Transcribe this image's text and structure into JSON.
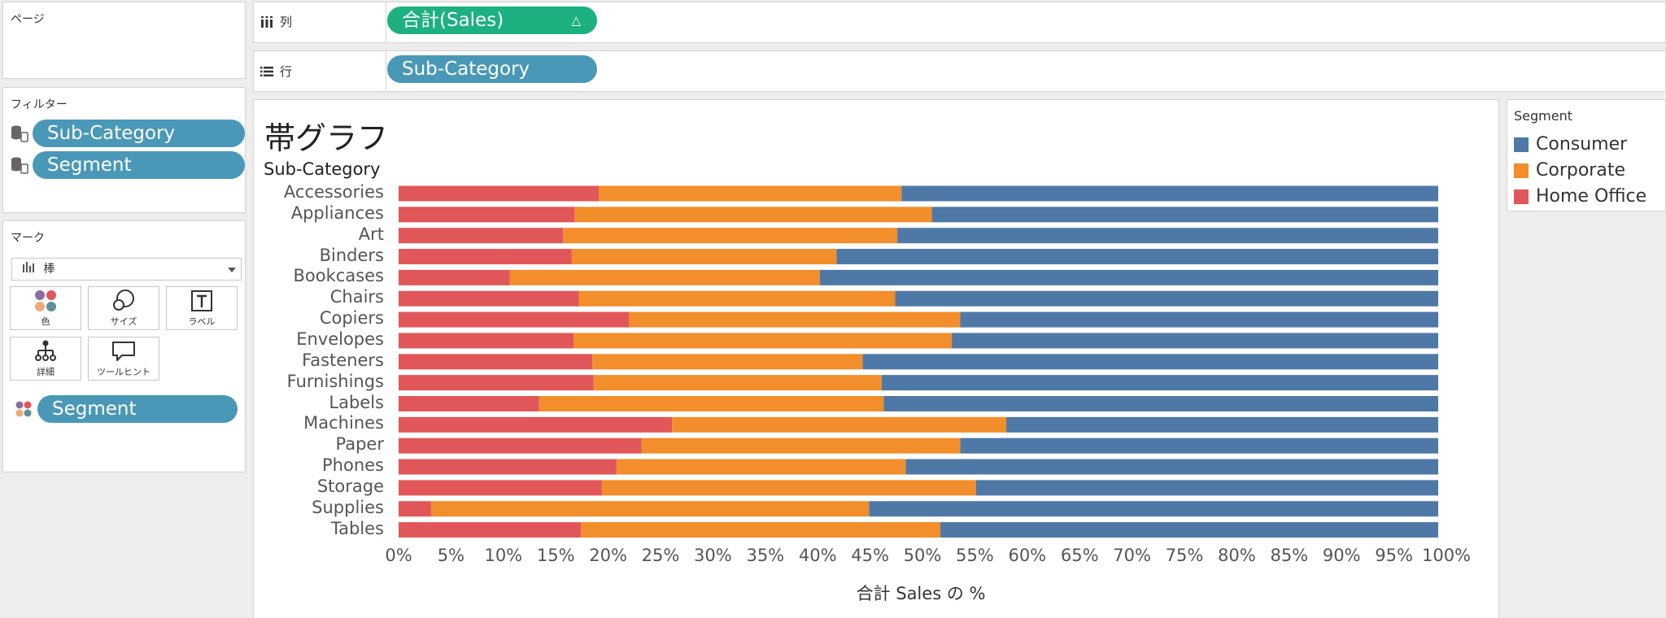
{
  "pages_panel": {
    "title": "ページ"
  },
  "filters_panel": {
    "title": "フィルター",
    "items": [
      {
        "label": "Sub-Category"
      },
      {
        "label": "Segment"
      }
    ]
  },
  "marks_panel": {
    "title": "マーク",
    "mark_type": "棒",
    "buttons": [
      {
        "label": "色"
      },
      {
        "label": "サイズ"
      },
      {
        "label": "ラベル"
      },
      {
        "label": "詳細"
      },
      {
        "label": "ツールヒント"
      }
    ],
    "color_pill": "Segment"
  },
  "shelves": {
    "columns_label": "列",
    "columns_pill": "合計(Sales)",
    "columns_pill_delta": "△",
    "rows_label": "行",
    "rows_pill": "Sub-Category"
  },
  "legend": {
    "title": "Segment",
    "items": [
      {
        "label": "Consumer",
        "color": "#4e79a7"
      },
      {
        "label": "Corporate",
        "color": "#f28e2b"
      },
      {
        "label": "Home Office",
        "color": "#e15759"
      }
    ]
  },
  "chart_data": {
    "type": "bar",
    "orientation": "horizontal",
    "stacked": "percent",
    "title": "帯グラフ",
    "row_header": "Sub-Category",
    "xlabel": "合計 Sales の %",
    "xlim": [
      0,
      100
    ],
    "x_ticks": [
      "0%",
      "5%",
      "10%",
      "15%",
      "20%",
      "25%",
      "30%",
      "35%",
      "40%",
      "45%",
      "50%",
      "55%",
      "60%",
      "65%",
      "70%",
      "75%",
      "80%",
      "85%",
      "90%",
      "95%",
      "100%"
    ],
    "categories": [
      "Accessories",
      "Appliances",
      "Art",
      "Binders",
      "Bookcases",
      "Chairs",
      "Copiers",
      "Envelopes",
      "Fasteners",
      "Furnishings",
      "Labels",
      "Machines",
      "Paper",
      "Phones",
      "Storage",
      "Supplies",
      "Tables"
    ],
    "series": [
      {
        "name": "Home Office",
        "color": "#e15759",
        "values": [
          19.1,
          16.8,
          15.7,
          16.5,
          10.6,
          17.2,
          22.0,
          16.7,
          18.5,
          18.6,
          13.4,
          26.1,
          23.2,
          20.8,
          19.4,
          3.1,
          17.4
        ]
      },
      {
        "name": "Corporate",
        "color": "#f28e2b",
        "values": [
          28.9,
          34.1,
          31.9,
          25.3,
          29.6,
          30.2,
          31.6,
          36.1,
          25.8,
          27.5,
          32.9,
          31.9,
          30.4,
          27.6,
          35.7,
          41.8,
          34.3
        ]
      },
      {
        "name": "Consumer",
        "color": "#4e79a7",
        "values": [
          52.0,
          49.1,
          52.4,
          58.2,
          59.8,
          52.6,
          46.4,
          47.2,
          55.7,
          53.9,
          53.7,
          42.0,
          46.4,
          51.6,
          44.9,
          55.1,
          48.3
        ]
      }
    ]
  }
}
